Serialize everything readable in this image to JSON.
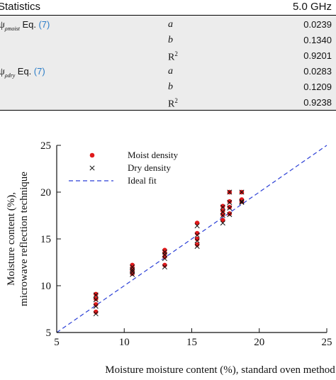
{
  "table": {
    "header_left": "Statistics",
    "header_right": "5.0 GHz",
    "rows": [
      {
        "symbol": "ψ",
        "subscript": "ρmoist",
        "eq_text": "Eq.",
        "eq_ref": "(7)",
        "param": "a",
        "value": "0.0239"
      },
      {
        "param": "b",
        "value": "0.1340"
      },
      {
        "param": "R",
        "param_sup": "2",
        "value": "0.9201"
      },
      {
        "symbol": "ψ",
        "subscript": "ρdry",
        "eq_text": "Eq.",
        "eq_ref": "(7)",
        "param": "a",
        "value": "0.0283"
      },
      {
        "param": "b",
        "value": "0.1209"
      },
      {
        "param": "R",
        "param_sup": "2",
        "value": "0.9238"
      }
    ]
  },
  "chart_data": {
    "type": "scatter",
    "xlabel": "Moisture moisture content (%), standard oven method",
    "ylabel_line1": "Moisture content (%),",
    "ylabel_line2": "microwave reflection technique",
    "xlim": [
      5,
      25
    ],
    "ylim": [
      5,
      25
    ],
    "xticks": [
      5,
      10,
      15,
      20,
      25
    ],
    "yticks": [
      5,
      10,
      15,
      20,
      25
    ],
    "grid": false,
    "legend_position": "top-left",
    "series": [
      {
        "name": "Moist density",
        "marker": "circle",
        "color": "#e0191b",
        "points": [
          [
            7.9,
            9.1
          ],
          [
            7.9,
            8.6
          ],
          [
            7.9,
            8.0
          ],
          [
            7.9,
            7.2
          ],
          [
            10.6,
            12.2
          ],
          [
            10.6,
            11.9
          ],
          [
            10.6,
            11.6
          ],
          [
            10.6,
            11.3
          ],
          [
            13.0,
            13.8
          ],
          [
            13.0,
            13.5
          ],
          [
            13.0,
            13.1
          ],
          [
            13.0,
            12.2
          ],
          [
            15.4,
            16.7
          ],
          [
            15.4,
            15.6
          ],
          [
            15.4,
            15.0
          ],
          [
            15.4,
            14.4
          ],
          [
            17.3,
            18.5
          ],
          [
            17.3,
            18.0
          ],
          [
            17.3,
            17.6
          ],
          [
            17.3,
            17.0
          ],
          [
            17.8,
            20.0
          ],
          [
            17.8,
            19.0
          ],
          [
            17.8,
            18.4
          ],
          [
            17.8,
            17.7
          ],
          [
            18.7,
            20.0
          ],
          [
            18.7,
            19.2
          ],
          [
            18.7,
            19.0
          ]
        ]
      },
      {
        "name": "Dry density",
        "marker": "x",
        "color": "#111111",
        "points": [
          [
            7.9,
            9.0
          ],
          [
            7.9,
            8.5
          ],
          [
            7.9,
            7.8
          ],
          [
            7.9,
            7.0
          ],
          [
            10.6,
            12.0
          ],
          [
            10.6,
            11.7
          ],
          [
            10.6,
            11.5
          ],
          [
            10.6,
            11.2
          ],
          [
            13.0,
            13.6
          ],
          [
            13.0,
            13.3
          ],
          [
            13.0,
            12.9
          ],
          [
            13.0,
            12.0
          ],
          [
            15.4,
            16.4
          ],
          [
            15.4,
            15.4
          ],
          [
            15.4,
            14.8
          ],
          [
            15.4,
            14.2
          ],
          [
            17.3,
            18.4
          ],
          [
            17.3,
            17.9
          ],
          [
            17.3,
            17.5
          ],
          [
            17.3,
            16.7
          ],
          [
            17.8,
            20.0
          ],
          [
            17.8,
            18.9
          ],
          [
            17.8,
            18.3
          ],
          [
            17.8,
            17.6
          ],
          [
            18.7,
            20.0
          ],
          [
            18.7,
            19.0
          ],
          [
            18.7,
            18.9
          ]
        ]
      },
      {
        "name": "Ideal fit",
        "marker": "dashed-line",
        "color": "#2b3fd6",
        "points": [
          [
            5,
            5
          ],
          [
            25,
            25
          ]
        ]
      }
    ]
  }
}
